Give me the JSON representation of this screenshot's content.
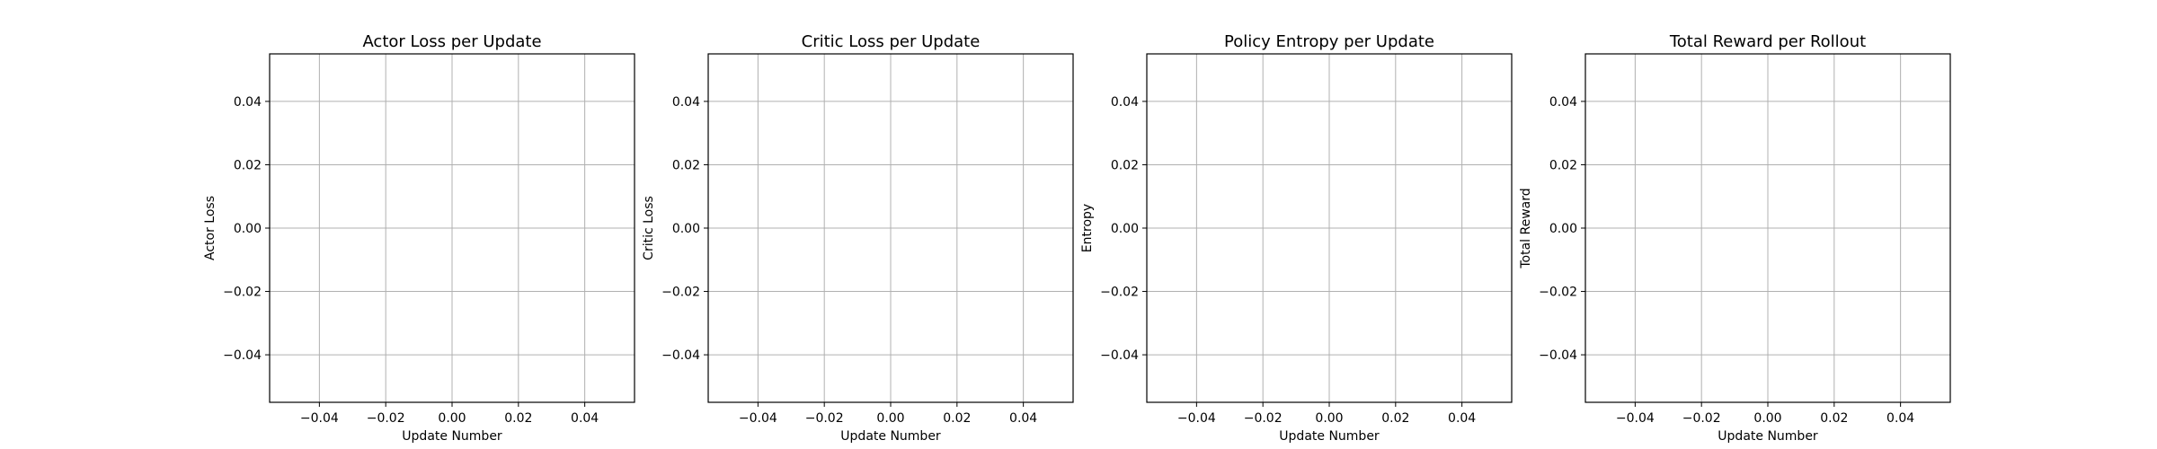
{
  "colors": {
    "grid": "#b0b0b0",
    "axis": "#000000",
    "background": "#ffffff"
  },
  "chart_data": [
    {
      "type": "line",
      "title": "Actor Loss per Update",
      "xlabel": "Update Number",
      "ylabel": "Actor Loss",
      "xlim": [
        -0.055,
        0.055
      ],
      "ylim": [
        -0.055,
        0.055
      ],
      "xticks": [
        -0.04,
        -0.02,
        0.0,
        0.02,
        0.04
      ],
      "xtick_labels": [
        "−0.04",
        "−0.02",
        "0.00",
        "0.02",
        "0.04"
      ],
      "yticks": [
        0.04,
        0.02,
        0.0,
        -0.02,
        -0.04
      ],
      "ytick_labels": [
        "0.04",
        "0.02",
        "0.00",
        "−0.02",
        "−0.04"
      ],
      "grid": true,
      "series": []
    },
    {
      "type": "line",
      "title": "Critic Loss per Update",
      "xlabel": "Update Number",
      "ylabel": "Critic Loss",
      "xlim": [
        -0.055,
        0.055
      ],
      "ylim": [
        -0.055,
        0.055
      ],
      "xticks": [
        -0.04,
        -0.02,
        0.0,
        0.02,
        0.04
      ],
      "xtick_labels": [
        "−0.04",
        "−0.02",
        "0.00",
        "0.02",
        "0.04"
      ],
      "yticks": [
        0.04,
        0.02,
        0.0,
        -0.02,
        -0.04
      ],
      "ytick_labels": [
        "0.04",
        "0.02",
        "0.00",
        "−0.02",
        "−0.04"
      ],
      "grid": true,
      "series": []
    },
    {
      "type": "line",
      "title": "Policy Entropy per Update",
      "xlabel": "Update Number",
      "ylabel": "Entropy",
      "xlim": [
        -0.055,
        0.055
      ],
      "ylim": [
        -0.055,
        0.055
      ],
      "xticks": [
        -0.04,
        -0.02,
        0.0,
        0.02,
        0.04
      ],
      "xtick_labels": [
        "−0.04",
        "−0.02",
        "0.00",
        "0.02",
        "0.04"
      ],
      "yticks": [
        0.04,
        0.02,
        0.0,
        -0.02,
        -0.04
      ],
      "ytick_labels": [
        "0.04",
        "0.02",
        "0.00",
        "−0.02",
        "−0.04"
      ],
      "grid": true,
      "series": []
    },
    {
      "type": "line",
      "title": "Total Reward per Rollout",
      "xlabel": "Update Number",
      "ylabel": "Total Reward",
      "xlim": [
        -0.055,
        0.055
      ],
      "ylim": [
        -0.055,
        0.055
      ],
      "xticks": [
        -0.04,
        -0.02,
        0.0,
        0.02,
        0.04
      ],
      "xtick_labels": [
        "−0.04",
        "−0.02",
        "0.00",
        "0.02",
        "0.04"
      ],
      "yticks": [
        0.04,
        0.02,
        0.0,
        -0.02,
        -0.04
      ],
      "ytick_labels": [
        "0.04",
        "0.02",
        "0.00",
        "−0.02",
        "−0.04"
      ],
      "grid": true,
      "series": []
    }
  ]
}
